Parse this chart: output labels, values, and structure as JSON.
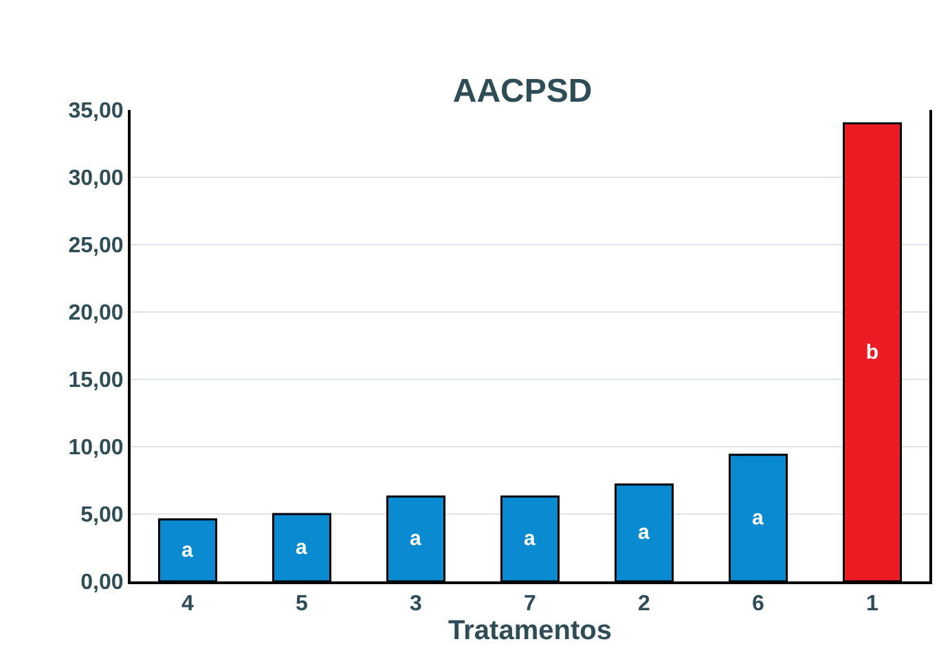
{
  "chart_data": {
    "type": "bar",
    "title": "AACPSD",
    "xlabel": "Tratamentos",
    "categories": [
      "4",
      "5",
      "3",
      "7",
      "2",
      "6",
      "1"
    ],
    "values": [
      4.6,
      5.0,
      6.3,
      6.3,
      7.2,
      9.4,
      34.0
    ],
    "colors": [
      "#0a8ad0",
      "#0a8ad0",
      "#0a8ad0",
      "#0a8ad0",
      "#0a8ad0",
      "#0a8ad0",
      "#ed1c24"
    ],
    "value_labels": [
      "a",
      "a",
      "a",
      "a",
      "a",
      "a",
      "b"
    ],
    "ylim": [
      0,
      35
    ],
    "yticks": [
      {
        "value": 0,
        "label": "0,00"
      },
      {
        "value": 5,
        "label": "5,00"
      },
      {
        "value": 10,
        "label": "10,00"
      },
      {
        "value": 15,
        "label": "15,00"
      },
      {
        "value": 20,
        "label": "20,00"
      },
      {
        "value": 25,
        "label": "25,00"
      },
      {
        "value": 30,
        "label": "30,00"
      },
      {
        "value": 35,
        "label": "35,00"
      }
    ],
    "grid": "y",
    "legend": false
  }
}
